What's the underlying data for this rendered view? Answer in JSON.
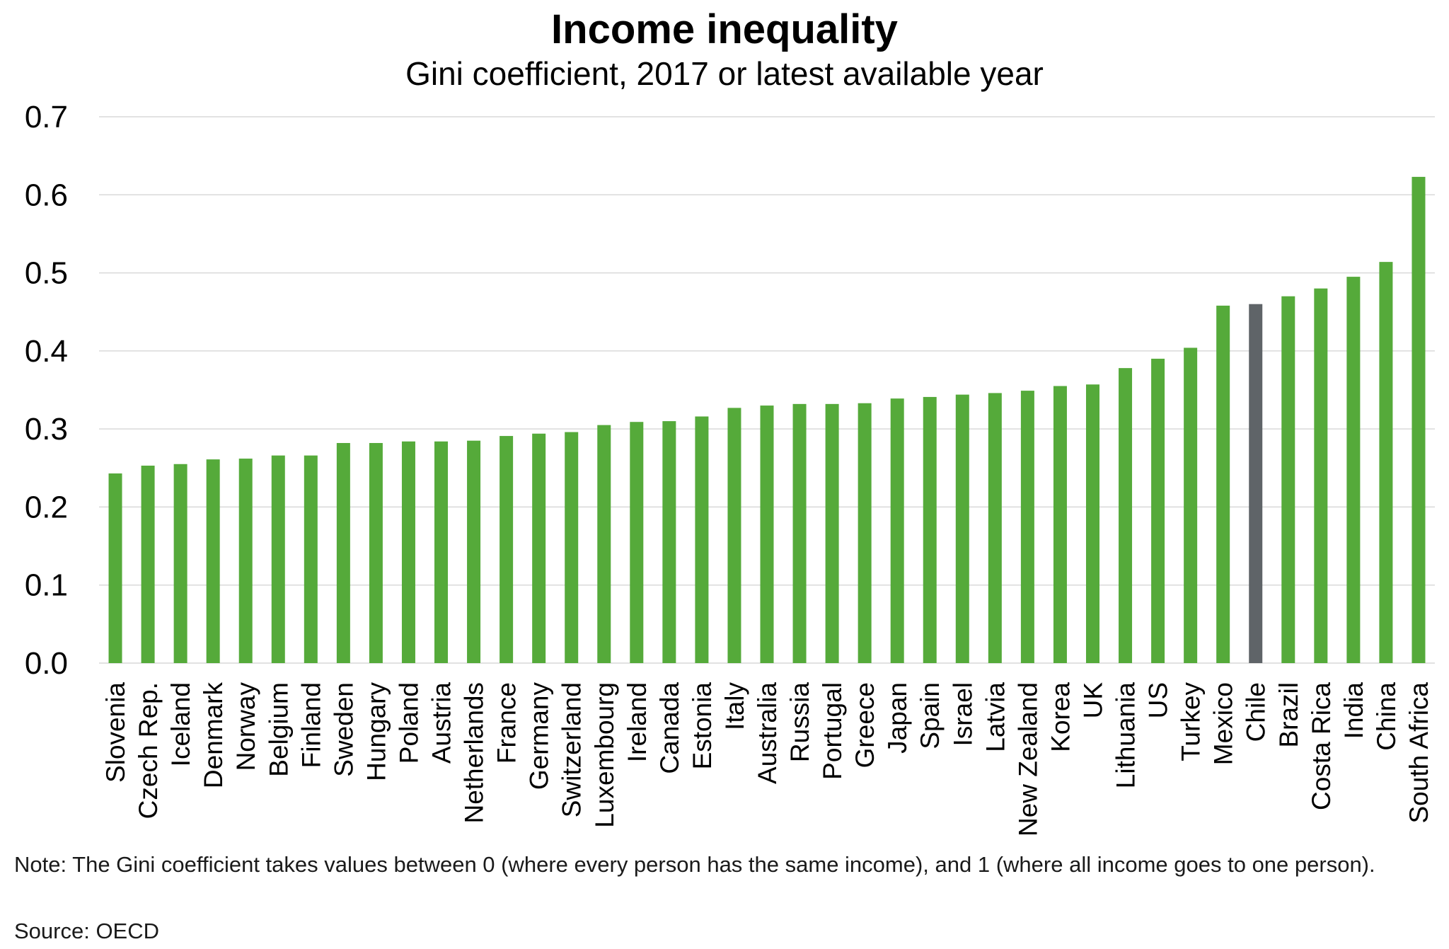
{
  "chart_data": {
    "type": "bar",
    "title": "Income inequality",
    "subtitle": "Gini coefficient, 2017 or latest available year",
    "xlabel": "",
    "ylabel": "",
    "ylim": [
      0,
      0.7
    ],
    "yticks": [
      "0.0",
      "0.1",
      "0.2",
      "0.3",
      "0.4",
      "0.5",
      "0.6",
      "0.7"
    ],
    "grid": true,
    "legend": "none",
    "bar_color": "#55AA3A",
    "highlight_color": "#5F6468",
    "highlight_category": "Chile",
    "categories": [
      "Slovenia",
      "Czech Rep.",
      "Iceland",
      "Denmark",
      "Norway",
      "Belgium",
      "Finland",
      "Sweden",
      "Hungary",
      "Poland",
      "Austria",
      "Netherlands",
      "France",
      "Germany",
      "Switzerland",
      "Luxembourg",
      "Ireland",
      "Canada",
      "Estonia",
      "Italy",
      "Australia",
      "Russia",
      "Portugal",
      "Greece",
      "Japan",
      "Spain",
      "Israel",
      "Latvia",
      "New Zealand",
      "Korea",
      "UK",
      "Lithuania",
      "US",
      "Turkey",
      "Mexico",
      "Chile",
      "Brazil",
      "Costa Rica",
      "India",
      "China",
      "South Africa"
    ],
    "values": [
      0.243,
      0.253,
      0.255,
      0.261,
      0.262,
      0.266,
      0.266,
      0.282,
      0.282,
      0.284,
      0.284,
      0.285,
      0.291,
      0.294,
      0.296,
      0.305,
      0.309,
      0.31,
      0.316,
      0.327,
      0.33,
      0.332,
      0.332,
      0.333,
      0.339,
      0.341,
      0.344,
      0.346,
      0.349,
      0.355,
      0.357,
      0.378,
      0.39,
      0.404,
      0.458,
      0.46,
      0.47,
      0.48,
      0.495,
      0.514,
      0.623
    ],
    "note": "Note: The Gini coefficient takes values between 0 (where every person has the same income), and 1 (where all income goes to one person).",
    "source": "Source: OECD"
  }
}
